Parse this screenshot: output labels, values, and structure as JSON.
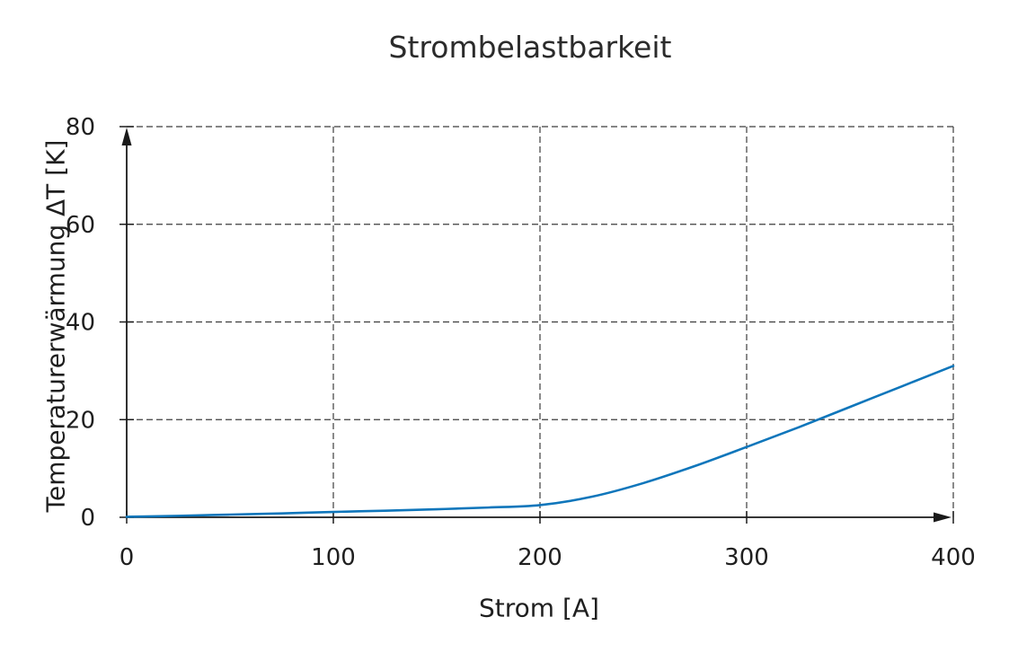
{
  "title": "Strombelastbarkeit",
  "colors": {
    "background": "#ffffff",
    "text": "#1f1f1f",
    "title_text": "#2b2b2b",
    "grid": "#3c3c3c",
    "axis": "#1a1a1a",
    "curve": "#0f76bb"
  },
  "chart_data": {
    "type": "line",
    "title": "Strombelastbarkeit",
    "xlabel": "Strom [A]",
    "ylabel": "Temperaturerwärmung ΔT [K]",
    "xlim": [
      0,
      400
    ],
    "ylim": [
      0,
      80
    ],
    "x_ticks": [
      0,
      100,
      200,
      300,
      400
    ],
    "y_ticks": [
      0,
      20,
      40,
      60,
      80
    ],
    "grid": "dashed",
    "legend": "none",
    "axis_style": "arrow-tipped",
    "series": [
      {
        "name": "Temperaturerwärmung ΔT",
        "color": "#0f76bb",
        "x": [
          0,
          25,
          50,
          75,
          100,
          125,
          150,
          175,
          200,
          225,
          250,
          275,
          300,
          325,
          350,
          375,
          400
        ],
        "y": [
          0.1,
          0.3,
          0.55,
          0.8,
          1.1,
          1.35,
          1.65,
          2.0,
          2.5,
          4.2,
          7.0,
          10.5,
          14.4,
          18.4,
          22.6,
          26.8,
          31.0
        ]
      }
    ]
  }
}
